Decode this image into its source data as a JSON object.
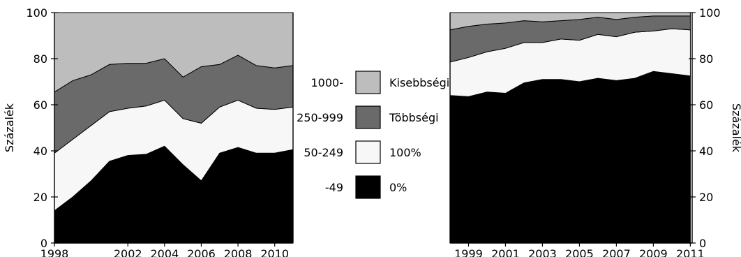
{
  "colors": {
    "Kisebbségi": "#bdbdbd",
    "Többségi": "#6a6a6a",
    "100%": "#f7f7f7",
    "0%": "#000000",
    "stroke": "#000000"
  },
  "legend": {
    "size_bands": [
      "1000-",
      "250-999",
      "50-249",
      "-49"
    ],
    "ownership": [
      "Kisebbségi",
      "Többségi",
      "100%",
      "0%"
    ]
  },
  "chart_data": [
    {
      "type": "area",
      "stacked": true,
      "title": "",
      "xlabel": "",
      "ylabel": "Százalék",
      "ylim": [
        0,
        100
      ],
      "yticks": [
        0,
        20,
        40,
        60,
        80,
        100
      ],
      "xticks": [
        1998,
        2002,
        2004,
        2006,
        2008,
        2010
      ],
      "x": [
        1998,
        1999,
        2000,
        2001,
        2002,
        2003,
        2004,
        2005,
        2006,
        2007,
        2008,
        2009,
        2010,
        2011
      ],
      "series": [
        {
          "name": "0%",
          "values": [
            14,
            20,
            27,
            35.5,
            38,
            38.5,
            42,
            34,
            27,
            39,
            41.5,
            39,
            39,
            40.5
          ]
        },
        {
          "name": "100%",
          "values": [
            25,
            25,
            24,
            21.5,
            20.5,
            21,
            20,
            20,
            25,
            20,
            20.5,
            19.5,
            19,
            18.5
          ]
        },
        {
          "name": "Többségi",
          "values": [
            26.5,
            25.5,
            22,
            20.5,
            19.5,
            18.5,
            18,
            18,
            24.5,
            18.5,
            19.5,
            18.5,
            18,
            18
          ]
        },
        {
          "name": "Kisebbségi",
          "values": [
            34.5,
            29.5,
            27,
            22.5,
            22,
            22,
            20,
            28,
            23.5,
            22.5,
            18.5,
            23,
            24,
            23
          ]
        }
      ]
    },
    {
      "type": "area",
      "stacked": true,
      "title": "",
      "xlabel": "",
      "ylabel": "Százalék",
      "ylim": [
        0,
        100
      ],
      "yticks": [
        0,
        20,
        40,
        60,
        80,
        100
      ],
      "xticks": [
        1999,
        2001,
        2003,
        2005,
        2007,
        2009,
        2011
      ],
      "x": [
        1998,
        1999,
        2000,
        2001,
        2002,
        2003,
        2004,
        2005,
        2006,
        2007,
        2008,
        2009,
        2010,
        2011
      ],
      "series": [
        {
          "name": "0%",
          "values": [
            64,
            63.5,
            65.5,
            65,
            69.5,
            71,
            71,
            70,
            71.5,
            70.5,
            71.5,
            74.5,
            73.5,
            72.5
          ]
        },
        {
          "name": "100%",
          "values": [
            14.5,
            17,
            17.5,
            19.5,
            17.5,
            16,
            17.5,
            18,
            19,
            19,
            20,
            17.5,
            19.5,
            20
          ]
        },
        {
          "name": "Többségi",
          "values": [
            14,
            13.5,
            12,
            11,
            9.5,
            9,
            8,
            9,
            7.5,
            7.5,
            6.5,
            6.5,
            5.5,
            6
          ]
        },
        {
          "name": "Kisebbségi",
          "values": [
            7.5,
            6,
            5,
            4.5,
            3.5,
            4,
            3.5,
            3,
            2,
            3,
            2,
            1.5,
            1.5,
            1.5
          ]
        }
      ]
    }
  ]
}
